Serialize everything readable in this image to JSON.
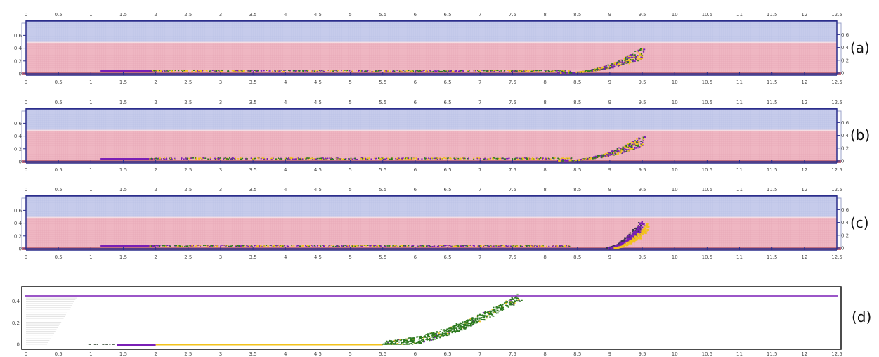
{
  "colors": {
    "air": "#c4c9ea",
    "water": "#eeb3c0",
    "bed": "#c06f80",
    "frame": "#2c2f8c",
    "purple": "#7a1fb5",
    "yellow": "#f2c21b",
    "green": "#2c7a1e",
    "dark": "#3b3550"
  },
  "x_ticks": [
    "0",
    "0.5",
    "1",
    "1.5",
    "2",
    "2.5",
    "3",
    "3.5",
    "4",
    "4.5",
    "5",
    "5.5",
    "6",
    "6.5",
    "7",
    "7.5",
    "8",
    "8.5",
    "9",
    "9.5",
    "10",
    "10.5",
    "11",
    "11.5",
    "12",
    "12.5"
  ],
  "y_ticks": [
    "0",
    "0.2",
    "0.4",
    "0.6"
  ],
  "y_ticks_d": [
    "0",
    "0.2",
    "0.4"
  ],
  "panels": [
    {
      "label": "(a)",
      "style": "mixed"
    },
    {
      "label": "(b)",
      "style": "mixed"
    },
    {
      "label": "(c)",
      "style": "separated"
    },
    {
      "label": "(d)",
      "style": "green"
    }
  ]
}
